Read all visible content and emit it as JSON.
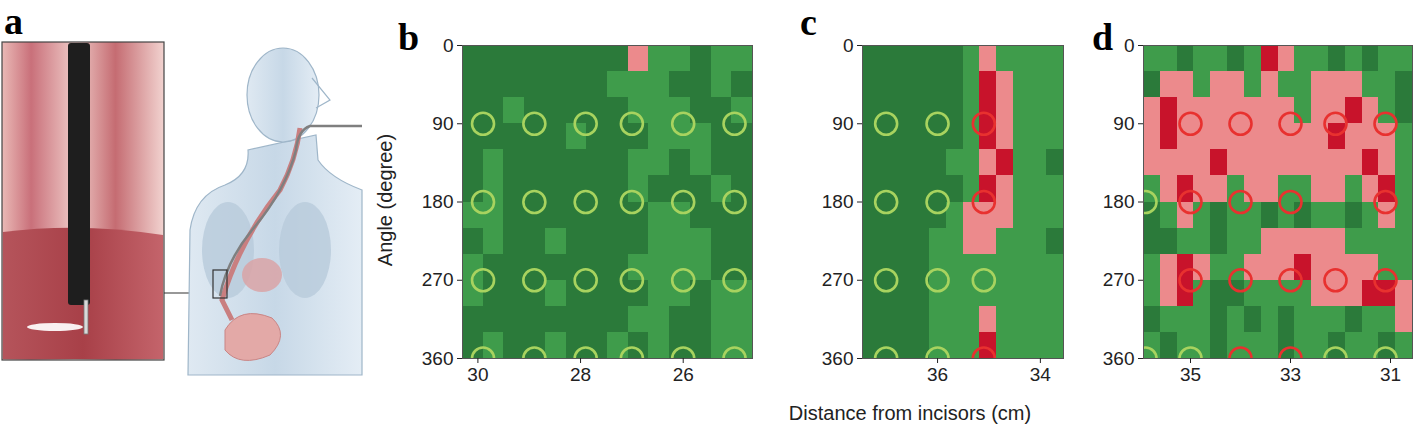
{
  "panel_a": {
    "label": "a"
  },
  "x_label": "Distance from incisors (cm)",
  "chart_data": [
    {
      "type": "heatmap",
      "label": "b",
      "y_label": "Angle (degree)",
      "xlim": [
        30.3,
        24.65
      ],
      "xticks": [
        30,
        28,
        26
      ],
      "ylim": [
        0,
        360
      ],
      "yticks": [
        0,
        90,
        180,
        270,
        360
      ],
      "levels": [
        0,
        1,
        2,
        3
      ],
      "level_colors": [
        "#2b7a3a",
        "#3f9c4b",
        "#ec8a8c",
        "#c8132b"
      ],
      "cells": [
        [
          0,
          0,
          0,
          0,
          0,
          0,
          0,
          0,
          2,
          1,
          1,
          0,
          1,
          1
        ],
        [
          0,
          0,
          0,
          0,
          0,
          0,
          0,
          1,
          1,
          1,
          0,
          0,
          1,
          0
        ],
        [
          0,
          0,
          1,
          0,
          0,
          0,
          0,
          0,
          1,
          1,
          1,
          0,
          0,
          1
        ],
        [
          0,
          0,
          0,
          0,
          0,
          1,
          0,
          0,
          0,
          1,
          1,
          1,
          0,
          0
        ],
        [
          0,
          1,
          0,
          0,
          0,
          0,
          0,
          0,
          1,
          1,
          0,
          1,
          0,
          0
        ],
        [
          0,
          1,
          0,
          0,
          0,
          0,
          0,
          0,
          1,
          0,
          0,
          0,
          1,
          0
        ],
        [
          1,
          1,
          0,
          0,
          0,
          0,
          0,
          0,
          0,
          1,
          1,
          0,
          0,
          0
        ],
        [
          0,
          1,
          0,
          0,
          1,
          0,
          0,
          0,
          0,
          1,
          1,
          1,
          0,
          0
        ],
        [
          1,
          0,
          0,
          0,
          0,
          0,
          0,
          0,
          1,
          1,
          1,
          1,
          0,
          0
        ],
        [
          1,
          0,
          0,
          0,
          1,
          0,
          0,
          0,
          0,
          1,
          1,
          0,
          1,
          1
        ],
        [
          0,
          0,
          0,
          0,
          0,
          0,
          0,
          0,
          1,
          1,
          0,
          0,
          1,
          1
        ],
        [
          0,
          1,
          0,
          0,
          1,
          0,
          0,
          1,
          0,
          1,
          0,
          0,
          1,
          1
        ]
      ],
      "circles": [
        {
          "x": 29.9,
          "angle": 90,
          "color": "#a8d35f"
        },
        {
          "x": 29.9,
          "angle": 180,
          "color": "#a8d35f"
        },
        {
          "x": 29.9,
          "angle": 270,
          "color": "#a8d35f"
        },
        {
          "x": 29.9,
          "angle": 360,
          "color": "#a8d35f"
        },
        {
          "x": 28.9,
          "angle": 90,
          "color": "#a8d35f"
        },
        {
          "x": 28.9,
          "angle": 180,
          "color": "#a8d35f"
        },
        {
          "x": 28.9,
          "angle": 270,
          "color": "#a8d35f"
        },
        {
          "x": 28.9,
          "angle": 360,
          "color": "#a8d35f"
        },
        {
          "x": 27.9,
          "angle": 90,
          "color": "#a8d35f"
        },
        {
          "x": 27.9,
          "angle": 180,
          "color": "#a8d35f"
        },
        {
          "x": 27.9,
          "angle": 270,
          "color": "#a8d35f"
        },
        {
          "x": 27.9,
          "angle": 360,
          "color": "#a8d35f"
        },
        {
          "x": 27.0,
          "angle": 90,
          "color": "#a8d35f"
        },
        {
          "x": 27.0,
          "angle": 180,
          "color": "#a8d35f"
        },
        {
          "x": 27.0,
          "angle": 270,
          "color": "#a8d35f"
        },
        {
          "x": 27.0,
          "angle": 360,
          "color": "#a8d35f"
        },
        {
          "x": 26.0,
          "angle": 90,
          "color": "#a8d35f"
        },
        {
          "x": 26.0,
          "angle": 180,
          "color": "#a8d35f"
        },
        {
          "x": 26.0,
          "angle": 270,
          "color": "#a8d35f"
        },
        {
          "x": 26.0,
          "angle": 360,
          "color": "#a8d35f"
        },
        {
          "x": 25.0,
          "angle": 90,
          "color": "#a8d35f"
        },
        {
          "x": 25.0,
          "angle": 180,
          "color": "#a8d35f"
        },
        {
          "x": 25.0,
          "angle": 270,
          "color": "#a8d35f"
        },
        {
          "x": 25.0,
          "angle": 360,
          "color": "#a8d35f"
        }
      ]
    },
    {
      "type": "heatmap",
      "label": "c",
      "xlim": [
        37.46,
        33.55
      ],
      "xticks": [
        36,
        34
      ],
      "ylim": [
        0,
        360
      ],
      "yticks": [
        0,
        90,
        180,
        270,
        360
      ],
      "levels": [
        0,
        1,
        2,
        3
      ],
      "level_colors": [
        "#2b7a3a",
        "#3f9c4b",
        "#ec8a8c",
        "#c8132b"
      ],
      "cells": [
        [
          0,
          0,
          0,
          0,
          0,
          0,
          1,
          2,
          1,
          1,
          1,
          1
        ],
        [
          0,
          0,
          0,
          0,
          0,
          0,
          1,
          3,
          2,
          1,
          1,
          1
        ],
        [
          0,
          0,
          0,
          0,
          0,
          0,
          1,
          3,
          2,
          1,
          1,
          1
        ],
        [
          0,
          0,
          0,
          0,
          0,
          0,
          1,
          3,
          2,
          1,
          1,
          1
        ],
        [
          0,
          0,
          0,
          0,
          0,
          1,
          1,
          2,
          3,
          1,
          1,
          0
        ],
        [
          0,
          0,
          0,
          0,
          0,
          0,
          1,
          3,
          2,
          1,
          1,
          1
        ],
        [
          0,
          0,
          0,
          0,
          0,
          1,
          2,
          2,
          2,
          1,
          1,
          1
        ],
        [
          0,
          0,
          0,
          0,
          1,
          1,
          2,
          2,
          1,
          1,
          1,
          0
        ],
        [
          0,
          0,
          0,
          0,
          1,
          1,
          1,
          1,
          1,
          1,
          1,
          1
        ],
        [
          0,
          0,
          0,
          0,
          1,
          1,
          1,
          1,
          1,
          1,
          1,
          1
        ],
        [
          0,
          0,
          0,
          0,
          1,
          1,
          1,
          2,
          1,
          1,
          1,
          1
        ],
        [
          0,
          0,
          0,
          0,
          1,
          1,
          1,
          3,
          1,
          1,
          1,
          1
        ]
      ],
      "circles": [
        {
          "x": 37.0,
          "angle": 90,
          "color": "#a8d35f"
        },
        {
          "x": 37.0,
          "angle": 180,
          "color": "#a8d35f"
        },
        {
          "x": 37.0,
          "angle": 270,
          "color": "#a8d35f"
        },
        {
          "x": 37.0,
          "angle": 360,
          "color": "#a8d35f"
        },
        {
          "x": 36.0,
          "angle": 90,
          "color": "#a8d35f"
        },
        {
          "x": 36.0,
          "angle": 180,
          "color": "#a8d35f"
        },
        {
          "x": 36.0,
          "angle": 270,
          "color": "#a8d35f"
        },
        {
          "x": 36.0,
          "angle": 360,
          "color": "#a8d35f"
        },
        {
          "x": 35.1,
          "angle": 90,
          "color": "#e8312f"
        },
        {
          "x": 35.1,
          "angle": 180,
          "color": "#e8312f"
        },
        {
          "x": 35.1,
          "angle": 270,
          "color": "#a8d35f"
        },
        {
          "x": 35.1,
          "angle": 360,
          "color": "#e8312f"
        }
      ]
    },
    {
      "type": "heatmap",
      "label": "d",
      "xlim": [
        35.94,
        30.56
      ],
      "xticks": [
        35,
        33,
        31
      ],
      "ylim": [
        0,
        360
      ],
      "yticks": [
        0,
        90,
        180,
        270,
        360
      ],
      "levels": [
        0,
        1,
        2,
        3
      ],
      "level_colors": [
        "#2b7a3a",
        "#3f9c4b",
        "#ec8a8c",
        "#c8132b"
      ],
      "cells": [
        [
          1,
          1,
          0,
          1,
          1,
          0,
          1,
          3,
          2,
          1,
          1,
          0,
          1,
          0,
          1,
          1
        ],
        [
          0,
          2,
          2,
          1,
          2,
          2,
          1,
          2,
          1,
          1,
          2,
          2,
          2,
          1,
          1,
          0
        ],
        [
          2,
          3,
          2,
          2,
          2,
          2,
          2,
          2,
          2,
          1,
          2,
          2,
          3,
          2,
          1,
          0
        ],
        [
          2,
          3,
          2,
          2,
          2,
          2,
          2,
          2,
          2,
          2,
          2,
          3,
          2,
          2,
          2,
          1
        ],
        [
          2,
          2,
          2,
          2,
          3,
          2,
          2,
          2,
          2,
          2,
          2,
          2,
          2,
          3,
          2,
          1
        ],
        [
          1,
          2,
          3,
          2,
          2,
          1,
          2,
          2,
          1,
          1,
          2,
          2,
          1,
          2,
          3,
          1
        ],
        [
          0,
          1,
          2,
          1,
          0,
          1,
          1,
          0,
          1,
          0,
          1,
          1,
          0,
          1,
          2,
          1
        ],
        [
          0,
          0,
          1,
          1,
          0,
          1,
          1,
          2,
          2,
          2,
          2,
          2,
          1,
          1,
          1,
          1
        ],
        [
          1,
          2,
          3,
          2,
          1,
          1,
          2,
          2,
          2,
          3,
          2,
          2,
          2,
          2,
          1,
          1
        ],
        [
          1,
          2,
          3,
          1,
          0,
          0,
          1,
          1,
          1,
          1,
          2,
          2,
          2,
          3,
          3,
          2
        ],
        [
          0,
          1,
          1,
          1,
          0,
          1,
          0,
          1,
          0,
          1,
          1,
          1,
          0,
          1,
          1,
          2
        ],
        [
          1,
          0,
          1,
          1,
          0,
          1,
          1,
          1,
          0,
          1,
          1,
          0,
          1,
          1,
          0,
          1
        ]
      ],
      "circles": [
        {
          "x": 35.9,
          "angle": 180,
          "color": "#a8d35f"
        },
        {
          "x": 35.9,
          "angle": 360,
          "color": "#a8d35f"
        },
        {
          "x": 35.0,
          "angle": 90,
          "color": "#e8312f"
        },
        {
          "x": 35.0,
          "angle": 180,
          "color": "#e8312f"
        },
        {
          "x": 35.0,
          "angle": 270,
          "color": "#e8312f"
        },
        {
          "x": 35.0,
          "angle": 360,
          "color": "#a8d35f"
        },
        {
          "x": 34.0,
          "angle": 90,
          "color": "#e8312f"
        },
        {
          "x": 34.0,
          "angle": 180,
          "color": "#e8312f"
        },
        {
          "x": 34.0,
          "angle": 270,
          "color": "#e8312f"
        },
        {
          "x": 34.0,
          "angle": 360,
          "color": "#e8312f"
        },
        {
          "x": 33.0,
          "angle": 90,
          "color": "#e8312f"
        },
        {
          "x": 33.0,
          "angle": 180,
          "color": "#e8312f"
        },
        {
          "x": 33.0,
          "angle": 270,
          "color": "#e8312f"
        },
        {
          "x": 33.0,
          "angle": 360,
          "color": "#e8312f"
        },
        {
          "x": 32.1,
          "angle": 90,
          "color": "#e8312f"
        },
        {
          "x": 32.1,
          "angle": 270,
          "color": "#e8312f"
        },
        {
          "x": 32.1,
          "angle": 360,
          "color": "#a8d35f"
        },
        {
          "x": 31.1,
          "angle": 90,
          "color": "#e8312f"
        },
        {
          "x": 31.1,
          "angle": 180,
          "color": "#e8312f"
        },
        {
          "x": 31.1,
          "angle": 270,
          "color": "#e8312f"
        },
        {
          "x": 31.1,
          "angle": 360,
          "color": "#a8d35f"
        }
      ]
    }
  ]
}
